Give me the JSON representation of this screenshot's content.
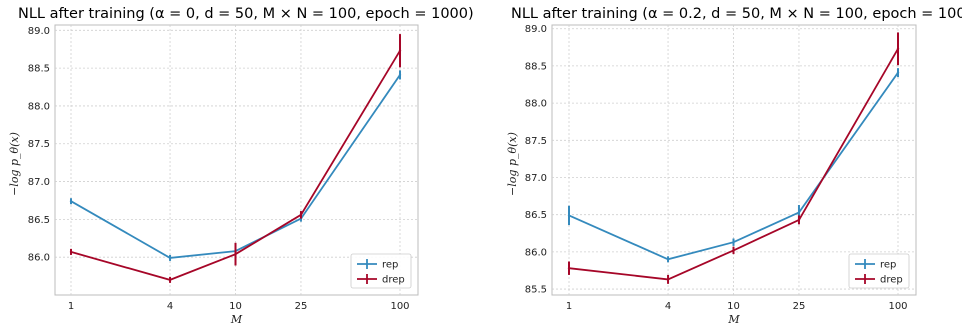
{
  "chart_data": [
    {
      "type": "line",
      "title": "NLL after training (α = 0, d = 50, M × N = 100, epoch = 1000)",
      "xlabel": "M",
      "ylabel": "−log p_θ(x)",
      "x_scale": "log",
      "categories": [
        "1",
        "4",
        "10",
        "25",
        "100"
      ],
      "x": [
        1,
        4,
        10,
        25,
        100
      ],
      "ylim": [
        85.5,
        89.07
      ],
      "yticks": [
        "86.0",
        "86.5",
        "87.0",
        "87.5",
        "88.0",
        "88.5",
        "89.0"
      ],
      "grid": true,
      "legend": "bottom-right",
      "series": [
        {
          "name": "rep",
          "color": "#348ABD",
          "values": [
            86.74,
            85.99,
            86.08,
            86.51,
            88.41
          ],
          "err": [
            0.0,
            0.0,
            0.02,
            0.04,
            0.06
          ]
        },
        {
          "name": "drep",
          "color": "#A60628",
          "values": [
            86.07,
            85.7,
            86.04,
            86.56,
            88.73
          ],
          "err": [
            0.04,
            0.0,
            0.15,
            0.05,
            0.22
          ]
        }
      ]
    },
    {
      "type": "line",
      "title": "NLL after training (α = 0.2, d = 50, M × N = 100, epoch = 1000)",
      "xlabel": "M",
      "ylabel": "−log p_θ(x)",
      "x_scale": "log",
      "categories": [
        "1",
        "4",
        "10",
        "25",
        "100"
      ],
      "x": [
        1,
        4,
        10,
        25,
        100
      ],
      "ylim": [
        85.42,
        89.05
      ],
      "yticks": [
        "85.5",
        "86.0",
        "86.5",
        "87.0",
        "87.5",
        "88.0",
        "88.5",
        "89.0"
      ],
      "grid": true,
      "legend": "bottom-right",
      "series": [
        {
          "name": "rep",
          "color": "#348ABD",
          "values": [
            86.49,
            85.9,
            86.13,
            86.53,
            88.41
          ],
          "err": [
            0.13,
            0.04,
            0.05,
            0.1,
            0.06
          ]
        },
        {
          "name": "drep",
          "color": "#A60628",
          "values": [
            85.78,
            85.63,
            86.02,
            86.43,
            88.73
          ],
          "err": [
            0.09,
            0.06,
            0.05,
            0.06,
            0.22
          ]
        }
      ]
    }
  ]
}
